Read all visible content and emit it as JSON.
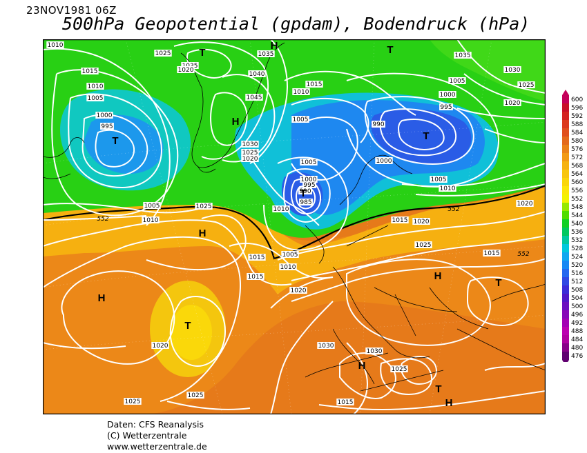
{
  "header": {
    "datetime": "23NOV1981 06Z",
    "title": "500hPa Geopotential (gpdam), Bodendruck (hPa)"
  },
  "footer": {
    "line1": "Daten: CFS Reanalysis",
    "line2": "(C) Wetterzentrale",
    "line3": "www.wetterzentrale.de"
  },
  "legend": {
    "levels": [
      "600",
      "596",
      "592",
      "588",
      "584",
      "580",
      "576",
      "572",
      "568",
      "564",
      "560",
      "556",
      "552",
      "548",
      "544",
      "540",
      "536",
      "532",
      "528",
      "524",
      "520",
      "516",
      "512",
      "508",
      "504",
      "500",
      "496",
      "492",
      "488",
      "484",
      "480",
      "476"
    ],
    "colors": [
      "#c4005a",
      "#c8102a",
      "#d42222",
      "#dc3a1e",
      "#e0501e",
      "#e46a1c",
      "#ea8218",
      "#f29a14",
      "#f6b212",
      "#f8c60e",
      "#fad60a",
      "#fce608",
      "#f2f200",
      "#96e800",
      "#50dc00",
      "#10d026",
      "#00c860",
      "#00c8a0",
      "#00c8dc",
      "#10a8f0",
      "#1888f4",
      "#2468f0",
      "#3048e4",
      "#3c2cd8",
      "#5018c8",
      "#6a10c0",
      "#8808b8",
      "#a400b4",
      "#bc00b0",
      "#b000a0",
      "#880088",
      "#600070"
    ]
  },
  "map": {
    "contour_552_label": "552",
    "isobar_labels": [
      "1010",
      "1025",
      "1035",
      "1035",
      "1040",
      "1045",
      "1020",
      "1030",
      "1025",
      "1020",
      "1015",
      "1010",
      "1005",
      "1000",
      "995",
      "1005",
      "1015",
      "1010",
      "1005",
      "1000",
      "995",
      "990",
      "1035",
      "1030",
      "1025",
      "1020",
      "1005",
      "1000",
      "995",
      "990",
      "985",
      "1000",
      "1005",
      "1010",
      "1020",
      "1005",
      "1025",
      "1010",
      "1015",
      "1005",
      "1010",
      "1015",
      "1020",
      "1025",
      "1020",
      "1010",
      "1015",
      "1015",
      "1020",
      "1025",
      "1030",
      "1030",
      "1025",
      "1015",
      "1025",
      "552",
      "552",
      "552"
    ],
    "systems": [
      {
        "type": "H",
        "name": "high-greenland-n"
      },
      {
        "type": "T",
        "name": "low-baffin"
      },
      {
        "type": "H",
        "name": "high-greenland-s"
      },
      {
        "type": "T",
        "name": "low-labrador"
      },
      {
        "type": "T",
        "name": "low-arctic"
      },
      {
        "type": "T",
        "name": "low-barents"
      },
      {
        "type": "T",
        "name": "low-norway"
      },
      {
        "type": "H",
        "name": "high-atlantic-mid"
      },
      {
        "type": "H",
        "name": "high-atlantic-west"
      },
      {
        "type": "T",
        "name": "low-azores"
      },
      {
        "type": "H",
        "name": "high-balkans"
      },
      {
        "type": "T",
        "name": "low-turkey"
      },
      {
        "type": "H",
        "name": "high-nafrica"
      },
      {
        "type": "T",
        "name": "low-sahara"
      },
      {
        "type": "H",
        "name": "high-sahara"
      }
    ]
  }
}
